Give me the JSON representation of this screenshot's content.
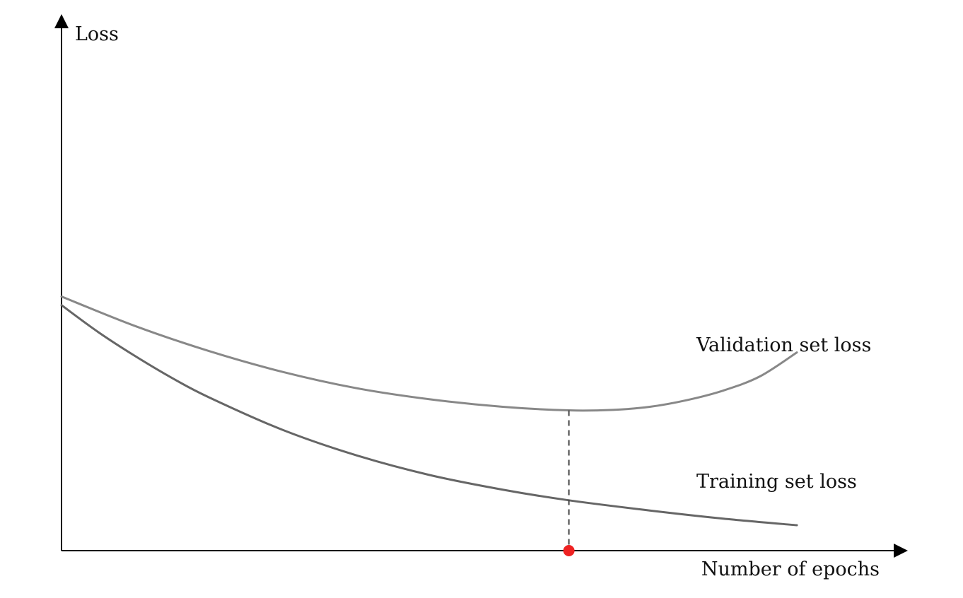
{
  "chart_data": {
    "type": "line",
    "title": "",
    "xlabel": "Number of epochs",
    "ylabel": "Loss",
    "grid": false,
    "xlim": [
      0,
      1
    ],
    "ylim": [
      0,
      1
    ],
    "series": [
      {
        "name": "Validation set loss",
        "color": "#888888",
        "x": [
          0,
          0.1,
          0.2,
          0.3,
          0.4,
          0.5,
          0.6,
          0.69,
          0.75,
          0.8,
          0.85,
          0.9,
          0.95,
          1.0
        ],
        "values": [
          0.5,
          0.442,
          0.393,
          0.352,
          0.32,
          0.298,
          0.283,
          0.276,
          0.277,
          0.283,
          0.296,
          0.315,
          0.343,
          0.39
        ]
      },
      {
        "name": "Training set loss",
        "color": "#666666",
        "x": [
          0,
          0.05,
          0.1,
          0.15,
          0.2,
          0.3,
          0.4,
          0.5,
          0.6,
          0.69,
          0.8,
          0.9,
          1.0
        ],
        "values": [
          0.483,
          0.43,
          0.383,
          0.34,
          0.302,
          0.238,
          0.188,
          0.149,
          0.12,
          0.099,
          0.079,
          0.063,
          0.05
        ]
      }
    ],
    "markers": [
      {
        "x": 0.69,
        "color": "#ee2222"
      }
    ]
  }
}
